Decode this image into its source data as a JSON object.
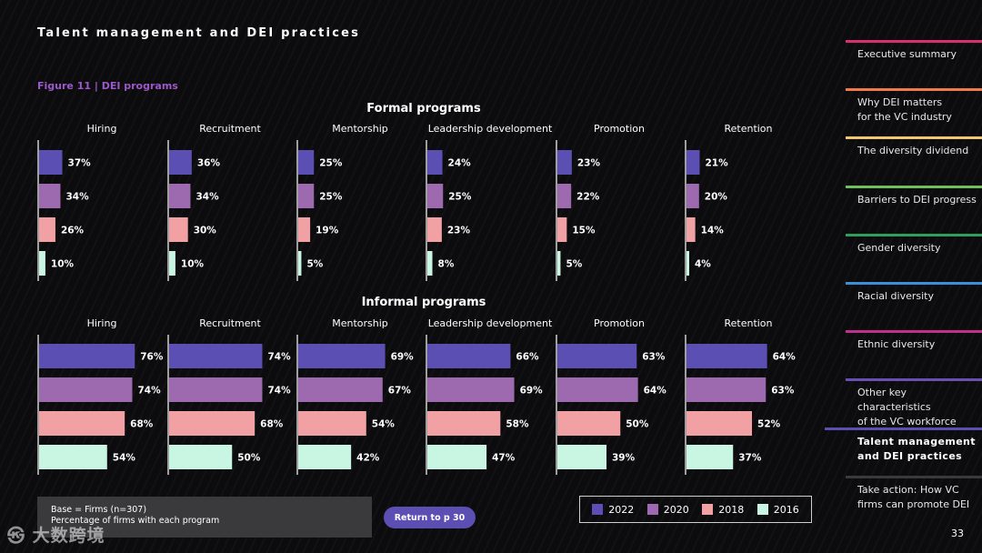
{
  "page": {
    "title": "Talent management and DEI practices",
    "figure_label": "Figure 11  | DEI programs",
    "page_number": "33",
    "watermark": "㉿ 大数跨境"
  },
  "chart_data": [
    {
      "type": "bar",
      "title": "Formal programs",
      "categories": [
        "Hiring",
        "Recruitment",
        "Mentorship",
        "Leadership development",
        "Promotion",
        "Retention"
      ],
      "series": [
        {
          "name": "2022",
          "color": "#5b4fb3",
          "values": [
            37,
            36,
            25,
            24,
            23,
            21
          ],
          "labels": [
            "37%",
            "36%",
            "25%",
            "24%",
            "23%",
            "21%"
          ]
        },
        {
          "name": "2020",
          "color": "#9d6aaf",
          "values": [
            34,
            34,
            25,
            25,
            22,
            20
          ],
          "labels": [
            "34%",
            "34%",
            "25%",
            "25%",
            "22%",
            "20%"
          ]
        },
        {
          "name": "2018",
          "color": "#f1a1a4",
          "values": [
            26,
            30,
            19,
            23,
            15,
            14
          ],
          "labels": [
            "26%",
            "30%",
            "19%",
            "23%",
            "15%",
            "14%"
          ]
        },
        {
          "name": "2016",
          "color": "#c8f6e3",
          "values": [
            10,
            10,
            5,
            8,
            5,
            4
          ],
          "labels": [
            "10%",
            "10%",
            "5%",
            "8%",
            "5%",
            "4%"
          ]
        }
      ],
      "xlim": [
        0,
        100
      ]
    },
    {
      "type": "bar",
      "title": "Informal programs",
      "categories": [
        "Hiring",
        "Recruitment",
        "Mentorship",
        "Leadership development",
        "Promotion",
        "Retention"
      ],
      "series": [
        {
          "name": "2022",
          "color": "#5b4fb3",
          "values": [
            76,
            74,
            69,
            66,
            63,
            64
          ],
          "labels": [
            "76%",
            "74%",
            "69%",
            "66%",
            "63%",
            "64%"
          ]
        },
        {
          "name": "2020",
          "color": "#9d6aaf",
          "values": [
            74,
            74,
            67,
            69,
            64,
            63
          ],
          "labels": [
            "74%",
            "74%",
            "67%",
            "69%",
            "64%",
            "63%"
          ]
        },
        {
          "name": "2018",
          "color": "#f1a1a4",
          "values": [
            68,
            68,
            54,
            58,
            50,
            52
          ],
          "labels": [
            "68%",
            "68%",
            "54%",
            "58%",
            "50%",
            "52%"
          ]
        },
        {
          "name": "2016",
          "color": "#c8f6e3",
          "values": [
            54,
            50,
            42,
            47,
            39,
            37
          ],
          "labels": [
            "54%",
            "50%",
            "42%",
            "47%",
            "39%",
            "37%"
          ]
        }
      ],
      "xlim": [
        0,
        100
      ]
    }
  ],
  "legend": [
    {
      "label": "2022",
      "color": "#5b4fb3"
    },
    {
      "label": "2020",
      "color": "#9d6aaf"
    },
    {
      "label": "2018",
      "color": "#f1a1a4"
    },
    {
      "label": "2016",
      "color": "#c8f6e3"
    }
  ],
  "base_note": {
    "line1": "Base = Firms (n=307)",
    "line2": "Percentage of firms with each program"
  },
  "return_button": {
    "label": "Return to p 30"
  },
  "nav": {
    "items": [
      {
        "label": "Executive summary",
        "color": "#d8306f"
      },
      {
        "label": "Why DEI matters\nfor the VC industry",
        "color": "#ef7b4a"
      },
      {
        "label": "The diversity dividend",
        "color": "#f2c86b"
      },
      {
        "label": "Barriers to DEI progress",
        "color": "#6fbf5a"
      },
      {
        "label": "Gender diversity",
        "color": "#2f9f5a"
      },
      {
        "label": "Racial diversity",
        "color": "#3a8fd6"
      },
      {
        "label": "Ethnic diversity",
        "color": "#c0308a"
      },
      {
        "label": "Other key characteristics\nof the VC workforce",
        "color": "#6a4fb3"
      },
      {
        "label": "Talent management\nand DEI practices",
        "color": "#5b4fb3"
      },
      {
        "label": "Take action: How VC\nfirms can promote DEI",
        "color": "#3a3a3c"
      }
    ],
    "active_index": 8
  }
}
